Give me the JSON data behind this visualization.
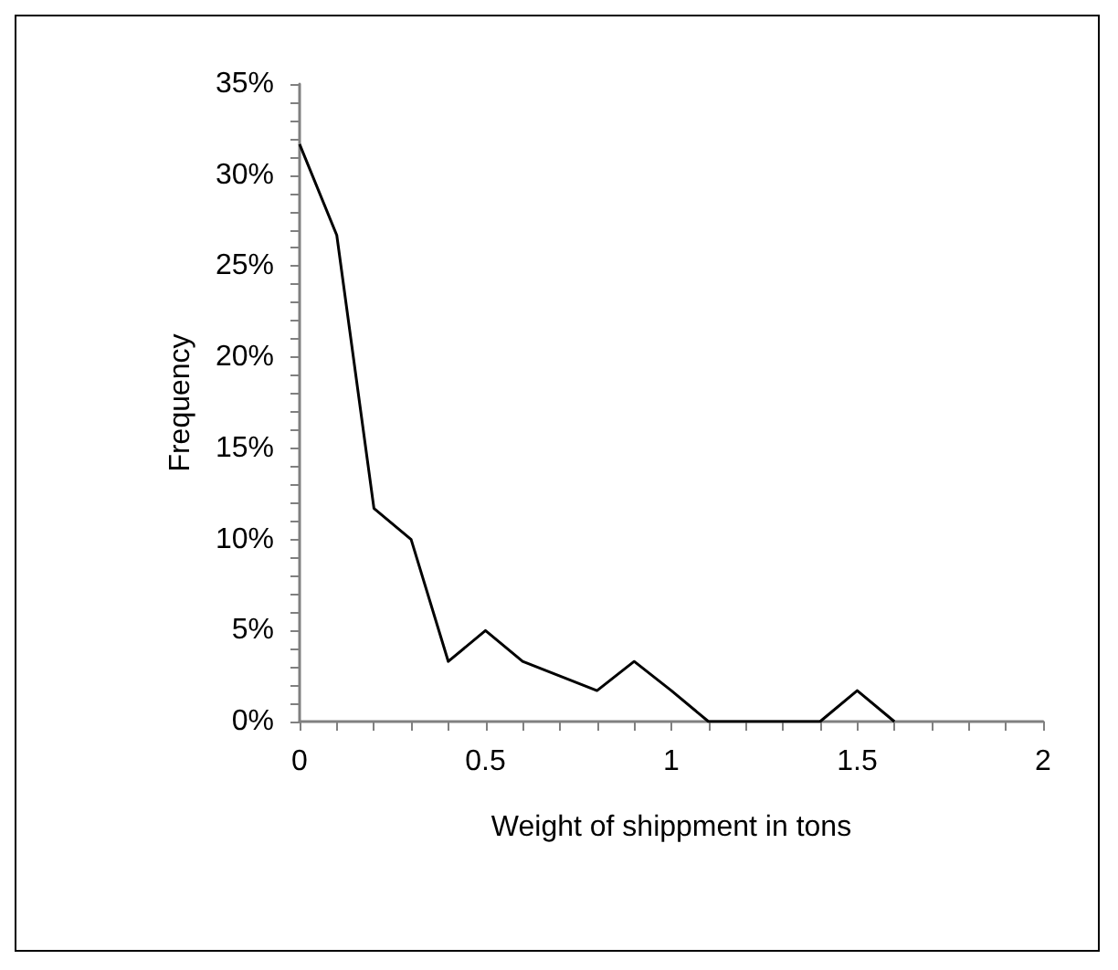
{
  "chart_data": {
    "type": "line",
    "xlabel": "Weight of shippment in tons",
    "ylabel": "Frequency",
    "x": [
      0,
      0.1,
      0.2,
      0.3,
      0.4,
      0.5,
      0.6,
      0.7,
      0.8,
      0.9,
      1.0,
      1.1,
      1.2,
      1.3,
      1.4,
      1.5,
      1.6
    ],
    "series": [
      {
        "color": "#000000",
        "values": [
          31.7,
          26.7,
          11.7,
          10,
          3.3,
          5,
          3.3,
          2.5,
          1.7,
          3.3,
          1.7,
          0,
          0,
          0,
          0,
          1.7,
          0
        ]
      }
    ],
    "xlim": [
      0,
      2
    ],
    "xticks": [
      0,
      {
        "value": 0.1,
        "label": null
      },
      {
        "value": 0.2,
        "label": null
      },
      {
        "value": 0.3,
        "label": null
      },
      {
        "value": 0.4,
        "label": null
      },
      0.5,
      {
        "value": 0.6,
        "label": null
      },
      {
        "value": 0.7,
        "label": null
      },
      {
        "value": 0.8,
        "label": null
      },
      {
        "value": 0.9,
        "label": null
      },
      1,
      {
        "value": 1.1,
        "label": null
      },
      {
        "value": 1.2,
        "label": null
      },
      {
        "value": 1.3,
        "label": null
      },
      {
        "value": 1.4,
        "label": null
      },
      1.5,
      {
        "value": 1.6,
        "label": null
      },
      {
        "value": 1.7,
        "label": null
      },
      {
        "value": 1.8,
        "label": null
      },
      {
        "value": 1.9,
        "label": null
      },
      2
    ],
    "ylim": [
      0,
      35
    ],
    "yticks": [
      {
        "value": 0,
        "label": "0%"
      },
      {
        "value": 1,
        "label": null
      },
      {
        "value": 2,
        "label": null
      },
      {
        "value": 3,
        "label": null
      },
      {
        "value": 4,
        "label": null
      },
      {
        "value": 5,
        "label": "5%"
      },
      {
        "value": 6,
        "label": null
      },
      {
        "value": 7,
        "label": null
      },
      {
        "value": 8,
        "label": null
      },
      {
        "value": 9,
        "label": null
      },
      {
        "value": 10,
        "label": "10%"
      },
      {
        "value": 11,
        "label": null
      },
      {
        "value": 12,
        "label": null
      },
      {
        "value": 13,
        "label": null
      },
      {
        "value": 14,
        "label": null
      },
      {
        "value": 15,
        "label": "15%"
      },
      {
        "value": 16,
        "label": null
      },
      {
        "value": 17,
        "label": null
      },
      {
        "value": 18,
        "label": null
      },
      {
        "value": 19,
        "label": null
      },
      {
        "value": 20,
        "label": "20%"
      },
      {
        "value": 21,
        "label": null
      },
      {
        "value": 22,
        "label": null
      },
      {
        "value": 23,
        "label": null
      },
      {
        "value": 24,
        "label": null
      },
      {
        "value": 25,
        "label": "25%"
      },
      {
        "value": 26,
        "label": null
      },
      {
        "value": 27,
        "label": null
      },
      {
        "value": 28,
        "label": null
      },
      {
        "value": 29,
        "label": null
      },
      {
        "value": 30,
        "label": "30%"
      },
      {
        "value": 31,
        "label": null
      },
      {
        "value": 32,
        "label": null
      },
      {
        "value": 33,
        "label": null
      },
      {
        "value": 34,
        "label": null
      },
      {
        "value": 35,
        "label": "35%"
      }
    ],
    "grid": false,
    "marker": "none",
    "line_style": "solid"
  }
}
